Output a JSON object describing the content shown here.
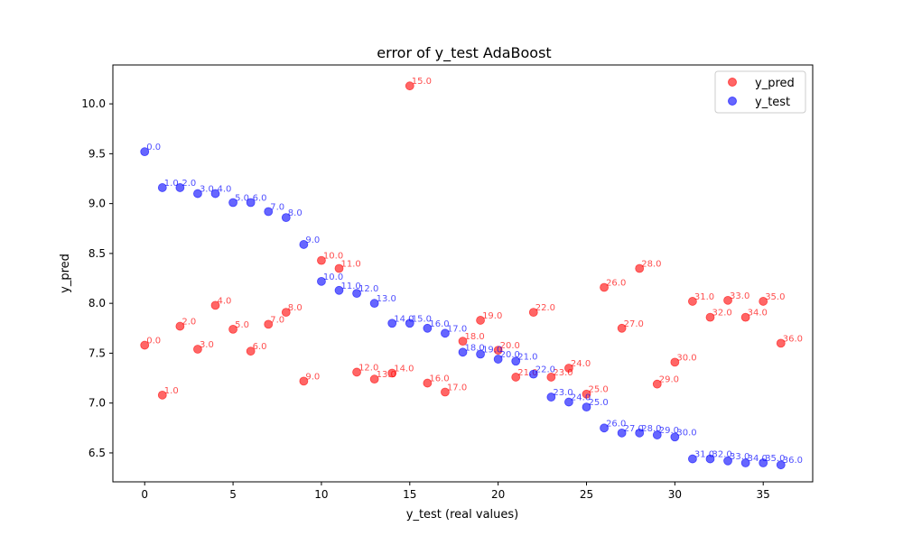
{
  "chart_data": {
    "type": "scatter",
    "title": "error of y_test AdaBoost",
    "xlabel": "y_test (real values)",
    "ylabel": "y_pred",
    "xlim": [
      -1.8,
      37.8
    ],
    "ylim": [
      6.21,
      10.39
    ],
    "x_ticks": [
      0,
      5,
      10,
      15,
      20,
      25,
      30,
      35
    ],
    "y_ticks": [
      6.5,
      7.0,
      7.5,
      8.0,
      8.5,
      9.0,
      9.5,
      10.0
    ],
    "x_tick_labels": [
      "0",
      "5",
      "10",
      "15",
      "20",
      "25",
      "30",
      "35"
    ],
    "y_tick_labels": [
      "6.5",
      "7.0",
      "7.5",
      "8.0",
      "8.5",
      "9.0",
      "9.5",
      "10.0"
    ],
    "grid": false,
    "legend_position": "top-right",
    "series": [
      {
        "name": "y_pred",
        "color": "#ff0000",
        "x": [
          0,
          1,
          2,
          3,
          4,
          5,
          6,
          7,
          8,
          9,
          10,
          11,
          12,
          13,
          14,
          15,
          16,
          17,
          18,
          19,
          20,
          21,
          22,
          23,
          24,
          25,
          26,
          27,
          28,
          29,
          30,
          31,
          32,
          33,
          34,
          35,
          36
        ],
        "values": [
          7.58,
          7.08,
          7.77,
          7.54,
          7.98,
          7.74,
          7.52,
          7.79,
          7.91,
          7.22,
          8.43,
          8.35,
          7.31,
          7.24,
          7.3,
          10.18,
          7.2,
          7.11,
          7.62,
          7.83,
          7.53,
          7.26,
          7.91,
          7.26,
          7.35,
          7.09,
          8.16,
          7.75,
          8.35,
          7.19,
          7.41,
          8.02,
          7.86,
          8.03,
          7.86,
          8.02,
          7.6
        ],
        "point_labels": [
          "0.0",
          "1.0",
          "2.0",
          "3.0",
          "4.0",
          "5.0",
          "6.0",
          "7.0",
          "8.0",
          "9.0",
          "10.0",
          "11.0",
          "12.0",
          "13.0",
          "14.0",
          "15.0",
          "16.0",
          "17.0",
          "18.0",
          "19.0",
          "20.0",
          "21.0",
          "22.0",
          "23.0",
          "24.0",
          "25.0",
          "26.0",
          "27.0",
          "28.0",
          "29.0",
          "30.0",
          "31.0",
          "32.0",
          "33.0",
          "34.0",
          "35.0",
          "36.0"
        ]
      },
      {
        "name": "y_test",
        "color": "#0000ff",
        "x": [
          0,
          1,
          2,
          3,
          4,
          5,
          6,
          7,
          8,
          9,
          10,
          11,
          12,
          13,
          14,
          15,
          16,
          17,
          18,
          19,
          20,
          21,
          22,
          23,
          24,
          25,
          26,
          27,
          28,
          29,
          30,
          31,
          32,
          33,
          34,
          35,
          36
        ],
        "values": [
          9.52,
          9.16,
          9.16,
          9.1,
          9.1,
          9.01,
          9.01,
          8.92,
          8.86,
          8.59,
          8.22,
          8.13,
          8.1,
          8.0,
          7.8,
          7.8,
          7.75,
          7.7,
          7.51,
          7.49,
          7.44,
          7.42,
          7.29,
          7.06,
          7.01,
          6.96,
          6.75,
          6.7,
          6.7,
          6.68,
          6.66,
          6.44,
          6.44,
          6.42,
          6.4,
          6.4,
          6.38
        ],
        "point_labels": [
          "0.0",
          "1.0",
          "2.0",
          "3.0",
          "4.0",
          "5.0",
          "6.0",
          "7.0",
          "8.0",
          "9.0",
          "10.0",
          "11.0",
          "12.0",
          "13.0",
          "14.0",
          "15.0",
          "16.0",
          "17.0",
          "18.0",
          "19.0",
          "20.0",
          "21.0",
          "22.0",
          "23.0",
          "24.0",
          "25.0",
          "26.0",
          "27.0",
          "28.0",
          "29.0",
          "30.0",
          "31.0",
          "32.0",
          "33.0",
          "34.0",
          "35.0",
          "36.0"
        ]
      }
    ]
  }
}
